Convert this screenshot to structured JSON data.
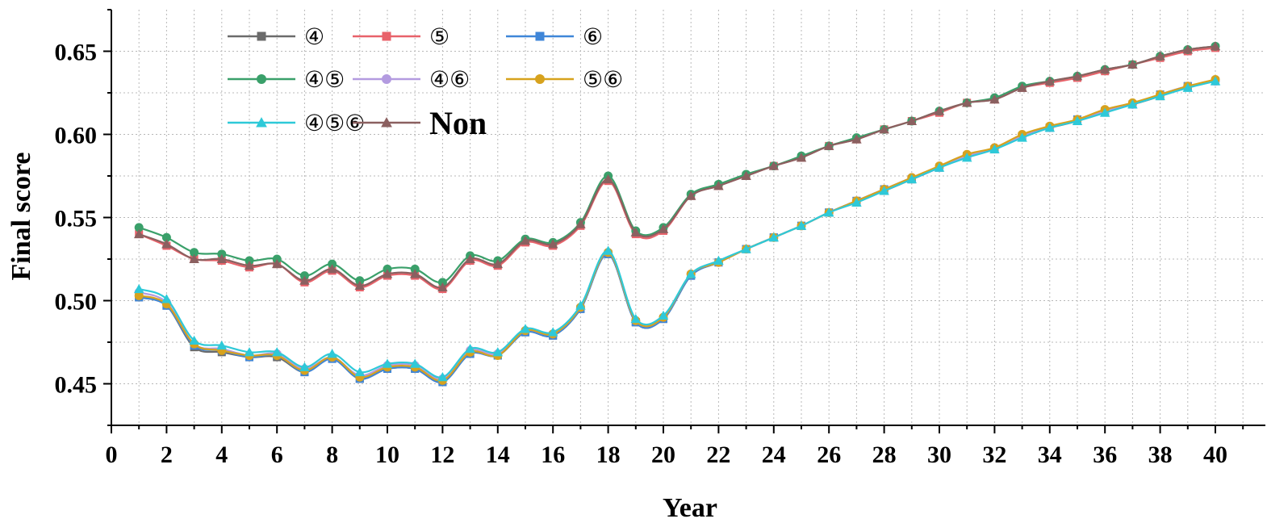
{
  "chart_data": {
    "type": "line",
    "xlabel": "Year",
    "ylabel": "Final score",
    "xlim": [
      0,
      40
    ],
    "ylim": [
      0.425,
      0.675
    ],
    "xticks": [
      0,
      2,
      4,
      6,
      8,
      10,
      12,
      14,
      16,
      18,
      20,
      22,
      24,
      26,
      28,
      30,
      32,
      34,
      36,
      38,
      40
    ],
    "yticks": [
      0.45,
      0.5,
      0.55,
      0.6,
      0.65
    ],
    "ytick_labels": [
      "0.45",
      "0.50",
      "0.55",
      "0.60",
      "0.65"
    ],
    "grid": true,
    "legend_position": "top-left",
    "x": [
      1,
      2,
      3,
      4,
      5,
      6,
      7,
      8,
      9,
      10,
      11,
      12,
      13,
      14,
      15,
      16,
      17,
      18,
      19,
      20,
      21,
      22,
      23,
      24,
      25,
      26,
      27,
      28,
      29,
      30,
      31,
      32,
      33,
      34,
      35,
      36,
      37,
      38,
      39,
      40
    ],
    "series": [
      {
        "name": "④",
        "color": "#6b6b6b",
        "marker": "square",
        "values": [
          0.502,
          0.497,
          0.472,
          0.469,
          0.466,
          0.466,
          0.457,
          0.465,
          0.453,
          0.459,
          0.459,
          0.451,
          0.468,
          0.467,
          0.481,
          0.479,
          0.495,
          0.528,
          0.487,
          0.489,
          0.515,
          0.523,
          0.531,
          0.538,
          0.545,
          0.553,
          0.56,
          0.566,
          0.573,
          0.58,
          0.587,
          0.591,
          0.599,
          0.604,
          0.608,
          0.614,
          0.618,
          0.623,
          0.629,
          0.632
        ]
      },
      {
        "name": "⑤",
        "color": "#e8626a",
        "marker": "square",
        "values": [
          0.54,
          0.533,
          0.525,
          0.524,
          0.52,
          0.522,
          0.511,
          0.518,
          0.508,
          0.515,
          0.515,
          0.507,
          0.524,
          0.521,
          0.535,
          0.533,
          0.545,
          0.572,
          0.54,
          0.542,
          0.563,
          0.569,
          0.575,
          0.581,
          0.586,
          0.593,
          0.597,
          0.603,
          0.608,
          0.613,
          0.619,
          0.621,
          0.628,
          0.631,
          0.634,
          0.638,
          0.642,
          0.646,
          0.65,
          0.652
        ]
      },
      {
        "name": "⑥",
        "color": "#3f86d8",
        "marker": "square",
        "values": [
          0.502,
          0.497,
          0.473,
          0.47,
          0.466,
          0.467,
          0.457,
          0.465,
          0.453,
          0.459,
          0.459,
          0.451,
          0.468,
          0.467,
          0.481,
          0.479,
          0.495,
          0.528,
          0.487,
          0.489,
          0.515,
          0.523,
          0.531,
          0.538,
          0.545,
          0.553,
          0.56,
          0.567,
          0.573,
          0.58,
          0.587,
          0.591,
          0.599,
          0.604,
          0.609,
          0.614,
          0.618,
          0.624,
          0.629,
          0.632
        ]
      },
      {
        "name": "④⑤",
        "color": "#3aa06a",
        "marker": "circle",
        "values": [
          0.544,
          0.538,
          0.529,
          0.528,
          0.524,
          0.525,
          0.515,
          0.522,
          0.512,
          0.519,
          0.519,
          0.511,
          0.527,
          0.524,
          0.537,
          0.535,
          0.547,
          0.575,
          0.542,
          0.544,
          0.564,
          0.57,
          0.576,
          0.581,
          0.587,
          0.593,
          0.598,
          0.603,
          0.608,
          0.614,
          0.619,
          0.622,
          0.629,
          0.632,
          0.635,
          0.639,
          0.642,
          0.647,
          0.651,
          0.653
        ]
      },
      {
        "name": "④⑥",
        "color": "#b39be0",
        "marker": "circle",
        "values": [
          0.505,
          0.499,
          0.474,
          0.471,
          0.467,
          0.468,
          0.459,
          0.466,
          0.455,
          0.461,
          0.461,
          0.453,
          0.47,
          0.468,
          0.482,
          0.48,
          0.496,
          0.529,
          0.488,
          0.49,
          0.516,
          0.523,
          0.531,
          0.538,
          0.545,
          0.553,
          0.56,
          0.567,
          0.574,
          0.58,
          0.587,
          0.592,
          0.599,
          0.604,
          0.609,
          0.614,
          0.618,
          0.624,
          0.629,
          0.632
        ]
      },
      {
        "name": "⑤⑥",
        "color": "#d7a21d",
        "marker": "circle",
        "values": [
          0.503,
          0.498,
          0.474,
          0.47,
          0.467,
          0.467,
          0.458,
          0.466,
          0.454,
          0.46,
          0.46,
          0.452,
          0.469,
          0.467,
          0.482,
          0.48,
          0.496,
          0.529,
          0.488,
          0.49,
          0.516,
          0.523,
          0.531,
          0.538,
          0.545,
          0.553,
          0.56,
          0.567,
          0.574,
          0.581,
          0.588,
          0.592,
          0.6,
          0.605,
          0.609,
          0.615,
          0.619,
          0.624,
          0.629,
          0.633
        ]
      },
      {
        "name": "④⑤⑥",
        "color": "#2ec9d8",
        "marker": "triangle",
        "values": [
          0.507,
          0.501,
          0.476,
          0.473,
          0.469,
          0.469,
          0.46,
          0.468,
          0.457,
          0.462,
          0.462,
          0.454,
          0.471,
          0.469,
          0.483,
          0.481,
          0.497,
          0.53,
          0.489,
          0.491,
          0.516,
          0.524,
          0.531,
          0.538,
          0.545,
          0.553,
          0.559,
          0.566,
          0.573,
          0.58,
          0.586,
          0.591,
          0.598,
          0.604,
          0.608,
          0.613,
          0.618,
          0.623,
          0.628,
          0.632
        ]
      },
      {
        "name": "Non",
        "color": "#8b6060",
        "marker": "triangle",
        "values": [
          0.54,
          0.534,
          0.525,
          0.525,
          0.521,
          0.522,
          0.512,
          0.519,
          0.509,
          0.516,
          0.516,
          0.508,
          0.525,
          0.522,
          0.536,
          0.534,
          0.546,
          0.573,
          0.541,
          0.543,
          0.563,
          0.569,
          0.575,
          0.581,
          0.586,
          0.593,
          0.597,
          0.603,
          0.608,
          0.614,
          0.619,
          0.621,
          0.628,
          0.632,
          0.635,
          0.639,
          0.642,
          0.647,
          0.651,
          0.653
        ]
      }
    ],
    "legend_order": [
      0,
      3,
      6,
      1,
      4,
      7,
      2,
      5
    ]
  }
}
